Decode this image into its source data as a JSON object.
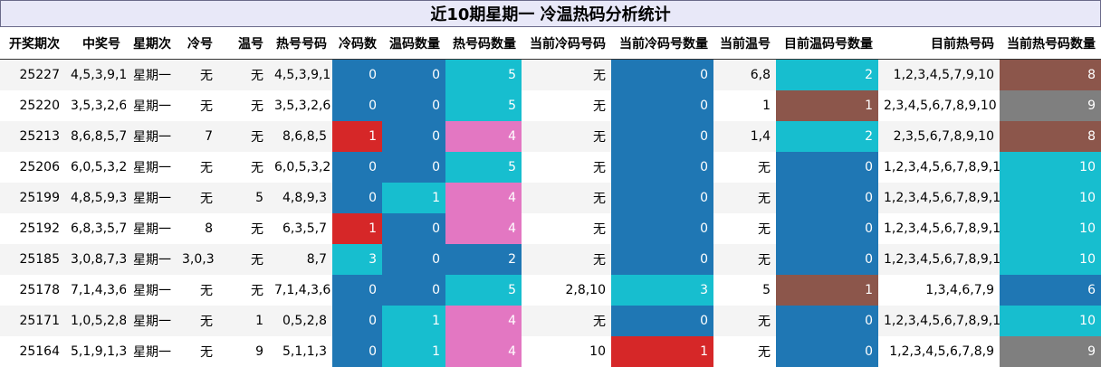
{
  "title": "近10期星期一 冷温热码分析统计",
  "columns": [
    "开奖期次",
    "中奖号",
    "星期次",
    "冷号",
    "温号",
    "热号号码",
    "冷码数",
    "温码数量",
    "热号码数量",
    "当前冷码号码",
    "当前冷码号数量",
    "当前温号",
    "目前温码号数量",
    "目前热号码",
    "当前热号码数量"
  ],
  "rows": [
    {
      "issue": "25227",
      "winning": "4,5,3,9,1",
      "weekday": "星期一",
      "cold": "无",
      "warm": "无",
      "hot": "4,5,3,9,1",
      "cold_count": "0",
      "warm_count": "0",
      "hot_count": "5",
      "cur_cold": "无",
      "cur_cold_count": "0",
      "cur_warm": "6,8",
      "cur_warm_count": "2",
      "cur_hot": "1,2,3,4,5,7,9,10",
      "cur_hot_count": "8"
    },
    {
      "issue": "25220",
      "winning": "3,5,3,2,6",
      "weekday": "星期一",
      "cold": "无",
      "warm": "无",
      "hot": "3,5,3,2,6",
      "cold_count": "0",
      "warm_count": "0",
      "hot_count": "5",
      "cur_cold": "无",
      "cur_cold_count": "0",
      "cur_warm": "1",
      "cur_warm_count": "1",
      "cur_hot": "2,3,4,5,6,7,8,9,10",
      "cur_hot_count": "9"
    },
    {
      "issue": "25213",
      "winning": "8,6,8,5,7",
      "weekday": "星期一",
      "cold": "7",
      "warm": "无",
      "hot": "8,6,8,5",
      "cold_count": "1",
      "warm_count": "0",
      "hot_count": "4",
      "cur_cold": "无",
      "cur_cold_count": "0",
      "cur_warm": "1,4",
      "cur_warm_count": "2",
      "cur_hot": "2,3,5,6,7,8,9,10",
      "cur_hot_count": "8"
    },
    {
      "issue": "25206",
      "winning": "6,0,5,3,2",
      "weekday": "星期一",
      "cold": "无",
      "warm": "无",
      "hot": "6,0,5,3,2",
      "cold_count": "0",
      "warm_count": "0",
      "hot_count": "5",
      "cur_cold": "无",
      "cur_cold_count": "0",
      "cur_warm": "无",
      "cur_warm_count": "0",
      "cur_hot": "1,2,3,4,5,6,7,8,9,10",
      "cur_hot_count": "10"
    },
    {
      "issue": "25199",
      "winning": "4,8,5,9,3",
      "weekday": "星期一",
      "cold": "无",
      "warm": "5",
      "hot": "4,8,9,3",
      "cold_count": "0",
      "warm_count": "1",
      "hot_count": "4",
      "cur_cold": "无",
      "cur_cold_count": "0",
      "cur_warm": "无",
      "cur_warm_count": "0",
      "cur_hot": "1,2,3,4,5,6,7,8,9,10",
      "cur_hot_count": "10"
    },
    {
      "issue": "25192",
      "winning": "6,8,3,5,7",
      "weekday": "星期一",
      "cold": "8",
      "warm": "无",
      "hot": "6,3,5,7",
      "cold_count": "1",
      "warm_count": "0",
      "hot_count": "4",
      "cur_cold": "无",
      "cur_cold_count": "0",
      "cur_warm": "无",
      "cur_warm_count": "0",
      "cur_hot": "1,2,3,4,5,6,7,8,9,10",
      "cur_hot_count": "10"
    },
    {
      "issue": "25185",
      "winning": "3,0,8,7,3",
      "weekday": "星期一",
      "cold": "3,0,3",
      "warm": "无",
      "hot": "8,7",
      "cold_count": "3",
      "warm_count": "0",
      "hot_count": "2",
      "cur_cold": "无",
      "cur_cold_count": "0",
      "cur_warm": "无",
      "cur_warm_count": "0",
      "cur_hot": "1,2,3,4,5,6,7,8,9,10",
      "cur_hot_count": "10"
    },
    {
      "issue": "25178",
      "winning": "7,1,4,3,6",
      "weekday": "星期一",
      "cold": "无",
      "warm": "无",
      "hot": "7,1,4,3,6",
      "cold_count": "0",
      "warm_count": "0",
      "hot_count": "5",
      "cur_cold": "2,8,10",
      "cur_cold_count": "3",
      "cur_warm": "5",
      "cur_warm_count": "1",
      "cur_hot": "1,3,4,6,7,9",
      "cur_hot_count": "6"
    },
    {
      "issue": "25171",
      "winning": "1,0,5,2,8",
      "weekday": "星期一",
      "cold": "无",
      "warm": "1",
      "hot": "0,5,2,8",
      "cold_count": "0",
      "warm_count": "1",
      "hot_count": "4",
      "cur_cold": "无",
      "cur_cold_count": "0",
      "cur_warm": "无",
      "cur_warm_count": "0",
      "cur_hot": "1,2,3,4,5,6,7,8,9,10",
      "cur_hot_count": "10"
    },
    {
      "issue": "25164",
      "winning": "5,1,9,1,3",
      "weekday": "星期一",
      "cold": "无",
      "warm": "9",
      "hot": "5,1,1,3",
      "cold_count": "0",
      "warm_count": "1",
      "hot_count": "4",
      "cur_cold": "10",
      "cur_cold_count": "1",
      "cur_warm": "无",
      "cur_warm_count": "0",
      "cur_hot": "1,2,3,4,5,6,7,8,9",
      "cur_hot_count": "9"
    }
  ],
  "colors": {
    "blue": "#1f77b4",
    "cyan": "#17becf",
    "red": "#d62728",
    "pink": "#e377c2",
    "brown": "#8c564b",
    "gray": "#7f7f7f"
  }
}
